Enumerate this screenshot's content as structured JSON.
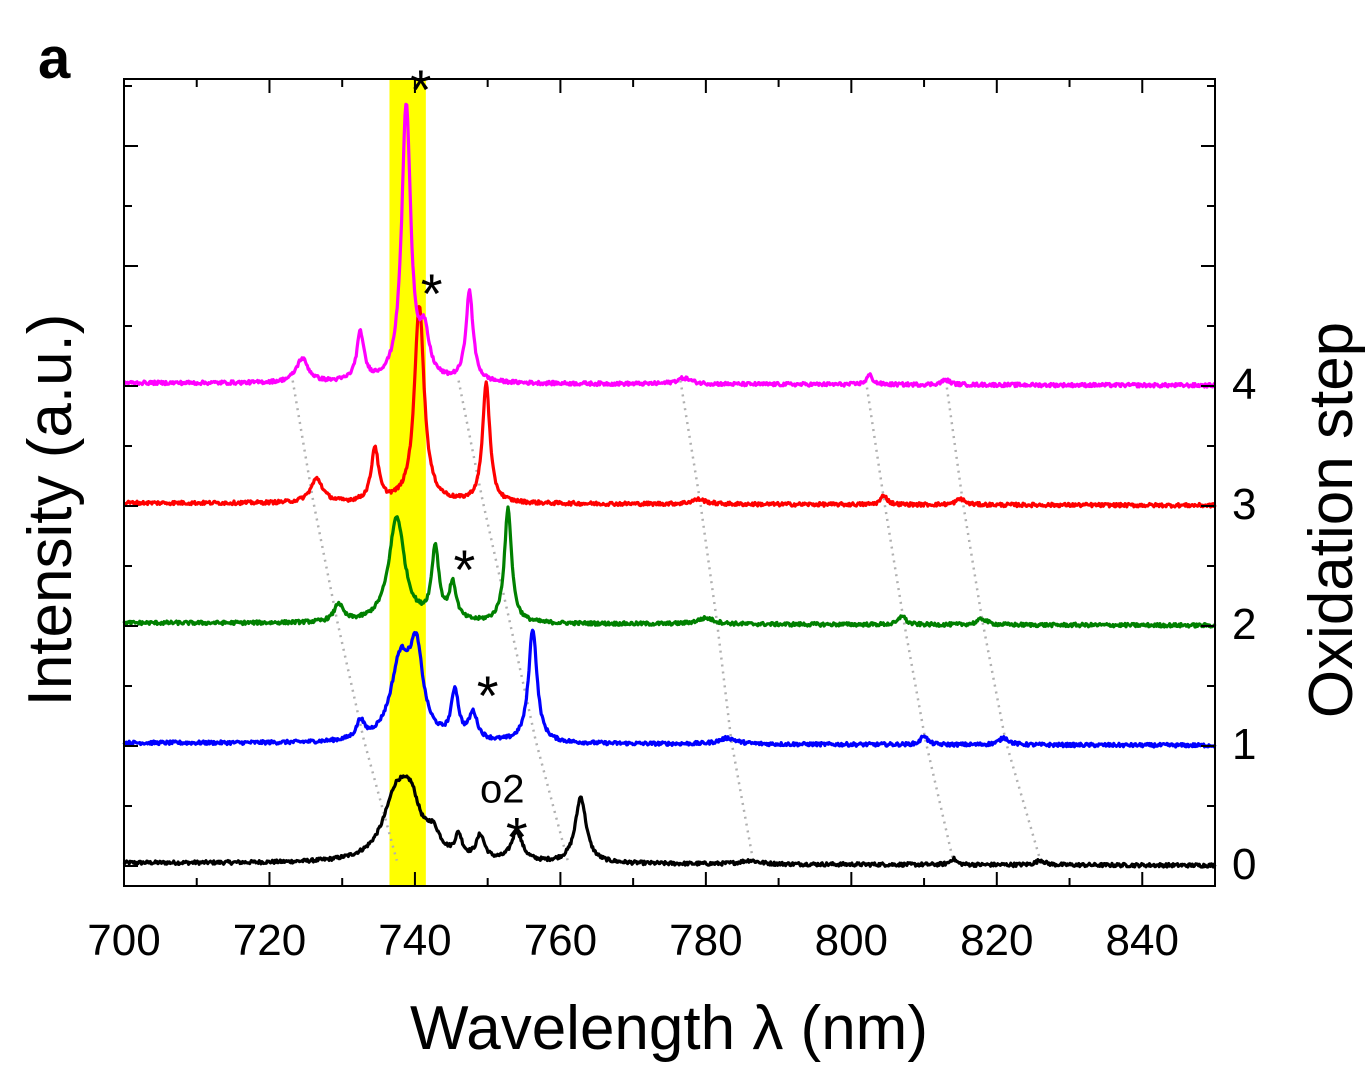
{
  "panel_label": "a",
  "chart_data": {
    "type": "line",
    "title": "",
    "xlabel": "Wavelength λ (nm)",
    "ylabel": "Intensity (a.u.)",
    "y2label": "Oxidation step",
    "xlim": [
      700,
      850
    ],
    "xticks": [
      700,
      720,
      740,
      760,
      780,
      800,
      820,
      840
    ],
    "xtick_labels": [
      "700",
      "720",
      "740",
      "760",
      "780",
      "800",
      "820",
      "840"
    ],
    "y2ticks": [
      0,
      1,
      2,
      3,
      4
    ],
    "y2tick_labels": [
      "0",
      "1",
      "2",
      "3",
      "4"
    ],
    "highlight_band": {
      "x0": 736.5,
      "x1": 741.5,
      "color": "#ffff00"
    },
    "series": [
      {
        "name": "Oxidation step 0",
        "step": 0,
        "color": "#000000",
        "offset": 0.0,
        "baseline": 0.05,
        "peaks": [
          [
            737.5,
            0.55,
            2.2
          ],
          [
            739.5,
            0.35,
            1.5
          ],
          [
            742.5,
            0.18,
            1.2
          ],
          [
            746,
            0.18,
            0.6
          ],
          [
            749,
            0.2,
            0.7
          ],
          [
            754,
            0.25,
            0.9
          ],
          [
            762.8,
            0.55,
            0.9
          ],
          [
            786,
            0.03,
            1.5
          ],
          [
            814,
            0.05,
            0.5
          ],
          [
            826,
            0.04,
            0.7
          ]
        ]
      },
      {
        "name": "Oxidation step 1",
        "step": 1,
        "color": "#0000ff",
        "offset": 1.0,
        "baseline": 0.05,
        "peaks": [
          [
            732.5,
            0.15,
            0.6
          ],
          [
            738,
            0.65,
            1.6
          ],
          [
            740.2,
            0.68,
            1.1
          ],
          [
            745.5,
            0.4,
            0.6
          ],
          [
            748,
            0.22,
            0.7
          ],
          [
            756.2,
            0.95,
            0.7
          ],
          [
            783,
            0.05,
            1.4
          ],
          [
            810,
            0.08,
            0.5
          ],
          [
            821,
            0.06,
            0.8
          ]
        ]
      },
      {
        "name": "Oxidation step 2",
        "step": 2,
        "color": "#008000",
        "offset": 2.0,
        "baseline": 0.05,
        "peaks": [
          [
            729.5,
            0.15,
            0.7
          ],
          [
            737.5,
            0.88,
            1.3
          ],
          [
            742.8,
            0.6,
            0.6
          ],
          [
            745.2,
            0.3,
            0.6
          ],
          [
            752.8,
            0.95,
            0.6
          ],
          [
            780,
            0.05,
            1.4
          ],
          [
            807,
            0.08,
            0.5
          ],
          [
            818,
            0.05,
            0.8
          ]
        ]
      },
      {
        "name": "Oxidation step 3",
        "step": 3,
        "color": "#ff0000",
        "offset": 3.0,
        "baseline": 0.05,
        "peaks": [
          [
            726.5,
            0.2,
            1.0
          ],
          [
            734.5,
            0.45,
            0.6
          ],
          [
            740.6,
            1.65,
            0.8
          ],
          [
            749.8,
            1.0,
            0.6
          ],
          [
            779,
            0.04,
            1.2
          ],
          [
            804.5,
            0.08,
            0.5
          ],
          [
            815,
            0.05,
            0.7
          ]
        ]
      },
      {
        "name": "Oxidation step 4",
        "step": 4,
        "color": "#ff00ff",
        "offset": 4.0,
        "baseline": 0.05,
        "peaks": [
          [
            724.5,
            0.2,
            1.0
          ],
          [
            732.5,
            0.4,
            0.6
          ],
          [
            738.8,
            2.3,
            0.75
          ],
          [
            741.3,
            0.35,
            0.8
          ],
          [
            747.5,
            0.75,
            0.6
          ],
          [
            777,
            0.05,
            1.2
          ],
          [
            802.5,
            0.08,
            0.5
          ],
          [
            813,
            0.04,
            0.7
          ]
        ]
      }
    ],
    "guide_lines": [
      [
        [
          723.2,
          4.07
        ],
        [
          726,
          3.07
        ],
        [
          729.3,
          2.07
        ],
        [
          733,
          1.07
        ],
        [
          737.5,
          0.07
        ]
      ],
      [
        [
          746,
          4.07
        ],
        [
          749.3,
          3.07
        ],
        [
          753,
          2.07
        ],
        [
          756.6,
          1.07
        ],
        [
          761,
          0.07
        ]
      ],
      [
        [
          776.5,
          4.07
        ],
        [
          779.2,
          3.07
        ],
        [
          781.5,
          2.07
        ],
        [
          783.5,
          1.07
        ],
        [
          786.5,
          0.07
        ]
      ],
      [
        [
          802,
          4.07
        ],
        [
          804.5,
          3.07
        ],
        [
          807.2,
          2.07
        ],
        [
          810.2,
          1.07
        ],
        [
          814,
          0.07
        ]
      ],
      [
        [
          813,
          4.07
        ],
        [
          815.3,
          3.07
        ],
        [
          818,
          2.07
        ],
        [
          821.2,
          1.07
        ],
        [
          826,
          0.07
        ]
      ]
    ],
    "annotations": [
      {
        "text": "*",
        "x": 740.8,
        "y": 6.55
      },
      {
        "text": "*",
        "x": 742.3,
        "y": 4.85
      },
      {
        "text": "*",
        "x": 746.8,
        "y": 2.55
      },
      {
        "text": "*",
        "x": 750.0,
        "y": 1.5
      },
      {
        "text": "o2",
        "x": 752.0,
        "y": 0.67
      },
      {
        "text": "*",
        "x": 754.0,
        "y": 0.32
      }
    ]
  }
}
